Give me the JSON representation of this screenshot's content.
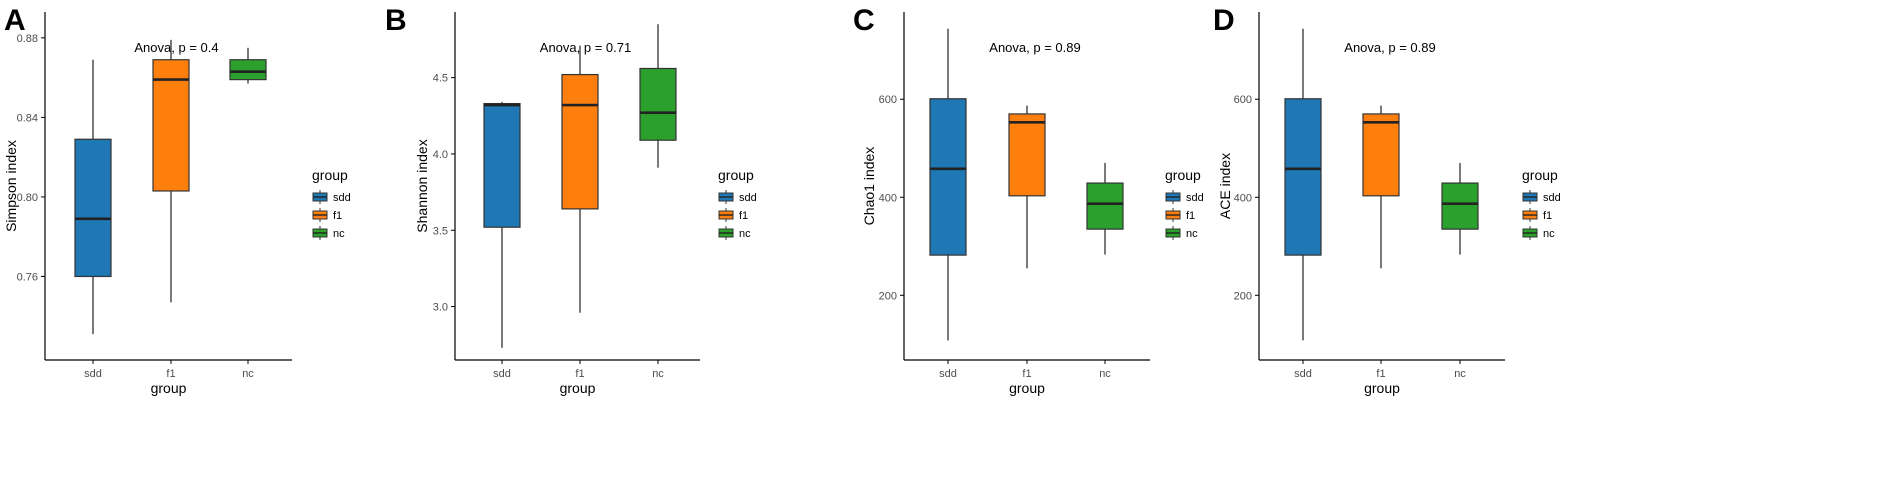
{
  "chart_data": [
    {
      "panel": "A",
      "type": "boxplot",
      "title": "",
      "annotation": "Anova, p = 0.4",
      "xlabel": "group",
      "ylabel": "Simpson index",
      "ylim": [
        0.718,
        0.893
      ],
      "yticks": [
        0.76,
        0.8,
        0.84,
        0.88
      ],
      "ytick_labels": [
        "0.76",
        "0.80",
        "0.84",
        "0.88"
      ],
      "categories": [
        "sdd",
        "f1",
        "nc"
      ],
      "boxes": [
        {
          "group": "sdd",
          "min": 0.731,
          "q1": 0.76,
          "median": 0.789,
          "q3": 0.829,
          "max": 0.869
        },
        {
          "group": "f1",
          "min": 0.747,
          "q1": 0.803,
          "median": 0.859,
          "q3": 0.869,
          "max": 0.879
        },
        {
          "group": "nc",
          "min": 0.857,
          "q1": 0.859,
          "median": 0.863,
          "q3": 0.869,
          "max": 0.875
        }
      ],
      "legend": {
        "title": "group",
        "entries": [
          "sdd",
          "f1",
          "nc"
        ]
      }
    },
    {
      "panel": "B",
      "type": "boxplot",
      "title": "",
      "annotation": "Anova, p = 0.71",
      "xlabel": "group",
      "ylabel": "Shannon index",
      "ylim": [
        2.65,
        4.93
      ],
      "yticks": [
        3.0,
        3.5,
        4.0,
        4.5
      ],
      "ytick_labels": [
        "3.0",
        "3.5",
        "4.0",
        "4.5"
      ],
      "categories": [
        "sdd",
        "f1",
        "nc"
      ],
      "boxes": [
        {
          "group": "sdd",
          "min": 2.73,
          "q1": 3.52,
          "median": 4.32,
          "q3": 4.33,
          "max": 4.34
        },
        {
          "group": "f1",
          "min": 2.96,
          "q1": 3.64,
          "median": 4.32,
          "q3": 4.52,
          "max": 4.71
        },
        {
          "group": "nc",
          "min": 3.91,
          "q1": 4.09,
          "median": 4.27,
          "q3": 4.56,
          "max": 4.85
        }
      ],
      "legend": {
        "title": "group",
        "entries": [
          "sdd",
          "f1",
          "nc"
        ]
      }
    },
    {
      "panel": "C",
      "type": "boxplot",
      "title": "",
      "annotation": "Anova, p = 0.89",
      "xlabel": "group",
      "ylabel": "Chao1 index",
      "ylim": [
        68,
        778
      ],
      "yticks": [
        200,
        400,
        600
      ],
      "ytick_labels": [
        "200",
        "400",
        "600"
      ],
      "categories": [
        "sdd",
        "f1",
        "nc"
      ],
      "boxes": [
        {
          "group": "sdd",
          "min": 108,
          "q1": 282,
          "median": 458,
          "q3": 601,
          "max": 744
        },
        {
          "group": "f1",
          "min": 255,
          "q1": 403,
          "median": 553,
          "q3": 570,
          "max": 587
        },
        {
          "group": "nc",
          "min": 283,
          "q1": 335,
          "median": 387,
          "q3": 429,
          "max": 470
        }
      ],
      "legend": {
        "title": "group",
        "entries": [
          "sdd",
          "f1",
          "nc"
        ]
      }
    },
    {
      "panel": "D",
      "type": "boxplot",
      "title": "",
      "annotation": "Anova, p = 0.89",
      "xlabel": "group",
      "ylabel": "ACE index",
      "ylim": [
        68,
        778
      ],
      "yticks": [
        200,
        400,
        600
      ],
      "ytick_labels": [
        "200",
        "400",
        "600"
      ],
      "categories": [
        "sdd",
        "f1",
        "nc"
      ],
      "boxes": [
        {
          "group": "sdd",
          "min": 108,
          "q1": 282,
          "median": 458,
          "q3": 601,
          "max": 744
        },
        {
          "group": "f1",
          "min": 255,
          "q1": 403,
          "median": 553,
          "q3": 570,
          "max": 587
        },
        {
          "group": "nc",
          "min": 283,
          "q1": 335,
          "median": 387,
          "q3": 429,
          "max": 470
        }
      ],
      "legend": {
        "title": "group",
        "entries": [
          "sdd",
          "f1",
          "nc"
        ]
      }
    }
  ],
  "colors": {
    "sdd": "#1f77b4",
    "f1": "#ff7f0e",
    "nc": "#2ca02c",
    "axis": "#000000",
    "whisker": "#333333"
  }
}
